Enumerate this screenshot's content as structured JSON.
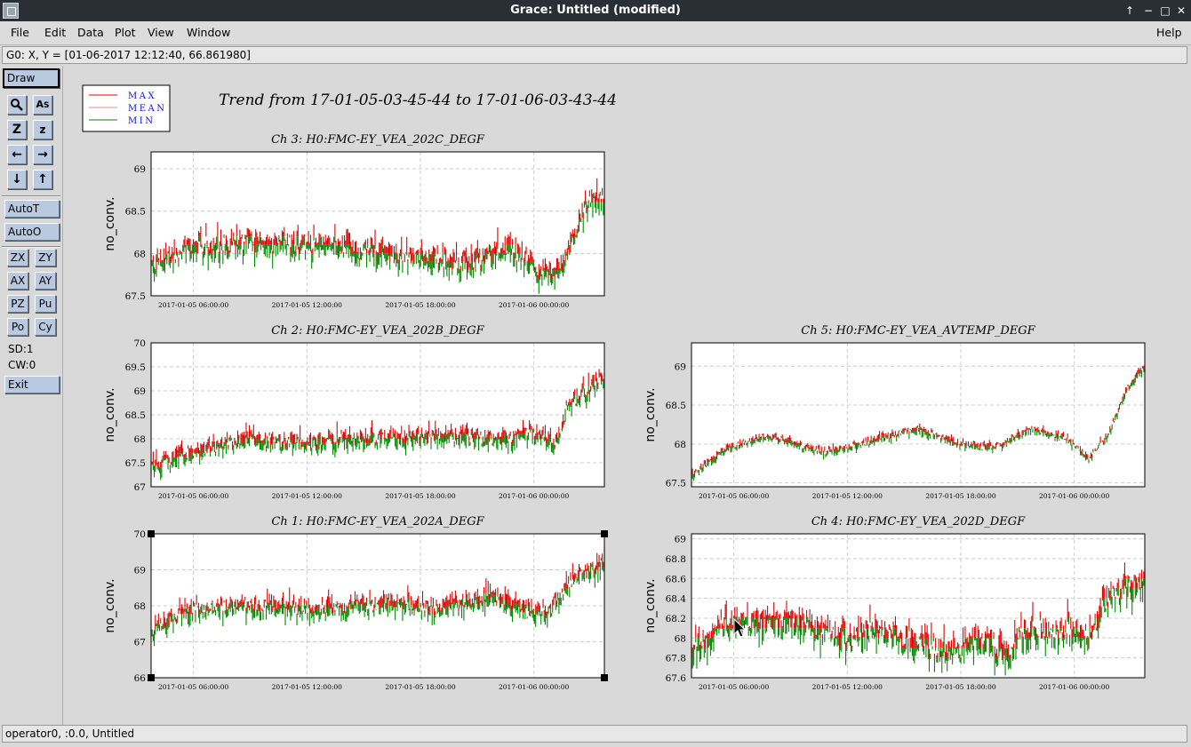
{
  "window": {
    "title": "Grace: Untitled (modified)",
    "controls": [
      "↑",
      "−",
      "□",
      "✕"
    ]
  },
  "menu": {
    "file": "File",
    "edit": "Edit",
    "data": "Data",
    "plot": "Plot",
    "view": "View",
    "window": "Window",
    "help": "Help"
  },
  "locator": "G0: X, Y = [01-06-2017 12:12:40, 66.861980]",
  "toolbar": {
    "draw": "Draw",
    "autot": "AutoT",
    "autoo": "AutoO",
    "zx": "ZX",
    "zy": "ZY",
    "ax": "AX",
    "ay": "AY",
    "pz": "PZ",
    "pu": "Pu",
    "po": "Po",
    "cy": "Cy",
    "sd": "SD:1",
    "cw": "CW:0",
    "exit": "Exit"
  },
  "status": "operator0, :0.0, Untitled",
  "plot": {
    "main_title": "Trend from 17-01-05-03-45-44 to 17-01-06-03-43-44",
    "legend": [
      {
        "label": "MAX",
        "color": "#e00000"
      },
      {
        "label": "MEAN",
        "color": "#e88a8a"
      },
      {
        "label": "MIN",
        "color": "#008800"
      }
    ],
    "label_color": "#1010d0"
  },
  "chart_data": [
    {
      "type": "line",
      "title": "Ch 3: H0:FMC-EY_VEA_202C_DEGF",
      "ylabel": "no_conv.",
      "x_ticks": [
        "2017-01-05 06:00:00",
        "2017-01-05 12:00:00",
        "2017-01-05 18:00:00",
        "2017-01-06 00:00:00"
      ],
      "y_ticks": [
        67.5,
        68,
        68.5,
        69
      ],
      "ylim": [
        67.5,
        69.2
      ],
      "xlim": [
        "2017-01-05 03:45:44",
        "2017-01-06 03:43:44"
      ],
      "series": [
        {
          "name": "MAX",
          "color": "#e00000"
        },
        {
          "name": "MEAN",
          "color": "#e88a8a"
        },
        {
          "name": "MIN",
          "color": "#008800"
        }
      ],
      "profile": {
        "hours": [
          0,
          2.5,
          9,
          13,
          17,
          19,
          21,
          22,
          23,
          24
        ],
        "values": [
          67.85,
          68.1,
          68.1,
          67.95,
          67.9,
          68.05,
          67.7,
          67.95,
          68.6,
          68.7
        ]
      },
      "spread": 0.15,
      "step": 0.1
    },
    {
      "type": "line",
      "title": "Ch 2: H0:FMC-EY_VEA_202B_DEGF",
      "ylabel": "no_conv.",
      "x_ticks": [
        "2017-01-05 06:00:00",
        "2017-01-05 12:00:00",
        "2017-01-05 18:00:00",
        "2017-01-06 00:00:00"
      ],
      "y_ticks": [
        67,
        67.5,
        68,
        68.5,
        69,
        69.5,
        70
      ],
      "ylim": [
        67,
        70
      ],
      "xlim": [
        "2017-01-05 03:45:44",
        "2017-01-06 03:43:44"
      ],
      "series": [
        {
          "name": "MAX",
          "color": "#e00000"
        },
        {
          "name": "MEAN",
          "color": "#e88a8a"
        },
        {
          "name": "MIN",
          "color": "#008800"
        }
      ],
      "profile": {
        "hours": [
          0,
          3,
          5,
          7,
          12,
          16,
          19,
          20,
          21.5,
          22,
          24
        ],
        "values": [
          67.4,
          67.8,
          68.0,
          67.9,
          68.0,
          68.05,
          68.0,
          68.1,
          67.9,
          68.7,
          69.3
        ]
      },
      "spread": 0.2,
      "step": 0.1
    },
    {
      "type": "line",
      "title": "Ch 1: H0:FMC-EY_VEA_202A_DEGF",
      "ylabel": "no_conv.",
      "x_ticks": [
        "2017-01-05 06:00:00",
        "2017-01-05 12:00:00",
        "2017-01-05 18:00:00",
        "2017-01-06 00:00:00"
      ],
      "y_ticks": [
        66,
        67,
        68,
        69,
        70
      ],
      "ylim": [
        66,
        70
      ],
      "xlim": [
        "2017-01-05 03:45:44",
        "2017-01-06 03:43:44"
      ],
      "series": [
        {
          "name": "MAX",
          "color": "#e00000"
        },
        {
          "name": "MEAN",
          "color": "#e88a8a"
        },
        {
          "name": "MIN",
          "color": "#008800"
        }
      ],
      "profile": {
        "hours": [
          0,
          2,
          5,
          9,
          13,
          15,
          18,
          20,
          21,
          22,
          24
        ],
        "values": [
          67.3,
          67.9,
          68.0,
          67.9,
          68.1,
          67.9,
          68.2,
          67.8,
          67.8,
          68.6,
          69.2
        ]
      },
      "spread": 0.3,
      "step": 0
    },
    {
      "type": "line",
      "title": "Ch 5: H0:FMC-EY_VEA_AVTEMP_DEGF",
      "ylabel": "no_conv.",
      "x_ticks": [
        "2017-01-05 06:00:00",
        "2017-01-05 12:00:00",
        "2017-01-05 18:00:00",
        "2017-01-06 00:00:00"
      ],
      "y_ticks": [
        67.5,
        68,
        68.5,
        69
      ],
      "ylim": [
        67.45,
        69.3
      ],
      "xlim": [
        "2017-01-05 03:45:44",
        "2017-01-06 03:43:44"
      ],
      "series": [
        {
          "name": "MAX",
          "color": "#e00000"
        },
        {
          "name": "MEAN",
          "color": "#e88a8a"
        },
        {
          "name": "MIN",
          "color": "#008800"
        }
      ],
      "profile": {
        "hours": [
          0,
          2,
          4,
          7,
          9,
          12,
          14,
          16,
          18,
          20,
          21,
          22,
          23,
          24
        ],
        "values": [
          67.6,
          67.95,
          68.1,
          67.9,
          68.0,
          68.2,
          68.0,
          67.95,
          68.2,
          68.05,
          67.8,
          68.1,
          68.7,
          69.0
        ]
      },
      "spread": 0.06,
      "step": 0
    },
    {
      "type": "line",
      "title": "Ch 4: H0:FMC-EY_VEA_202D_DEGF",
      "ylabel": "no_conv.",
      "x_ticks": [
        "2017-01-05 06:00:00",
        "2017-01-05 12:00:00",
        "2017-01-05 18:00:00",
        "2017-01-06 00:00:00"
      ],
      "y_ticks": [
        67.6,
        67.8,
        68,
        68.2,
        68.4,
        68.6,
        68.8,
        69
      ],
      "ylim": [
        67.6,
        69.05
      ],
      "xlim": [
        "2017-01-05 03:45:44",
        "2017-01-06 03:43:44"
      ],
      "series": [
        {
          "name": "MAX",
          "color": "#e00000"
        },
        {
          "name": "MEAN",
          "color": "#e88a8a"
        },
        {
          "name": "MIN",
          "color": "#008800"
        }
      ],
      "profile": {
        "hours": [
          0,
          1,
          1.5,
          6,
          8,
          10,
          11,
          14,
          15,
          16.5,
          18,
          19,
          20,
          21,
          22,
          24
        ],
        "values": [
          67.9,
          68.0,
          68.15,
          68.15,
          68.0,
          68.1,
          68.0,
          67.85,
          68.0,
          67.85,
          68.1,
          68.05,
          68.1,
          68.0,
          68.4,
          68.6
        ]
      },
      "spread": 0.15,
      "step": 0.1
    }
  ]
}
